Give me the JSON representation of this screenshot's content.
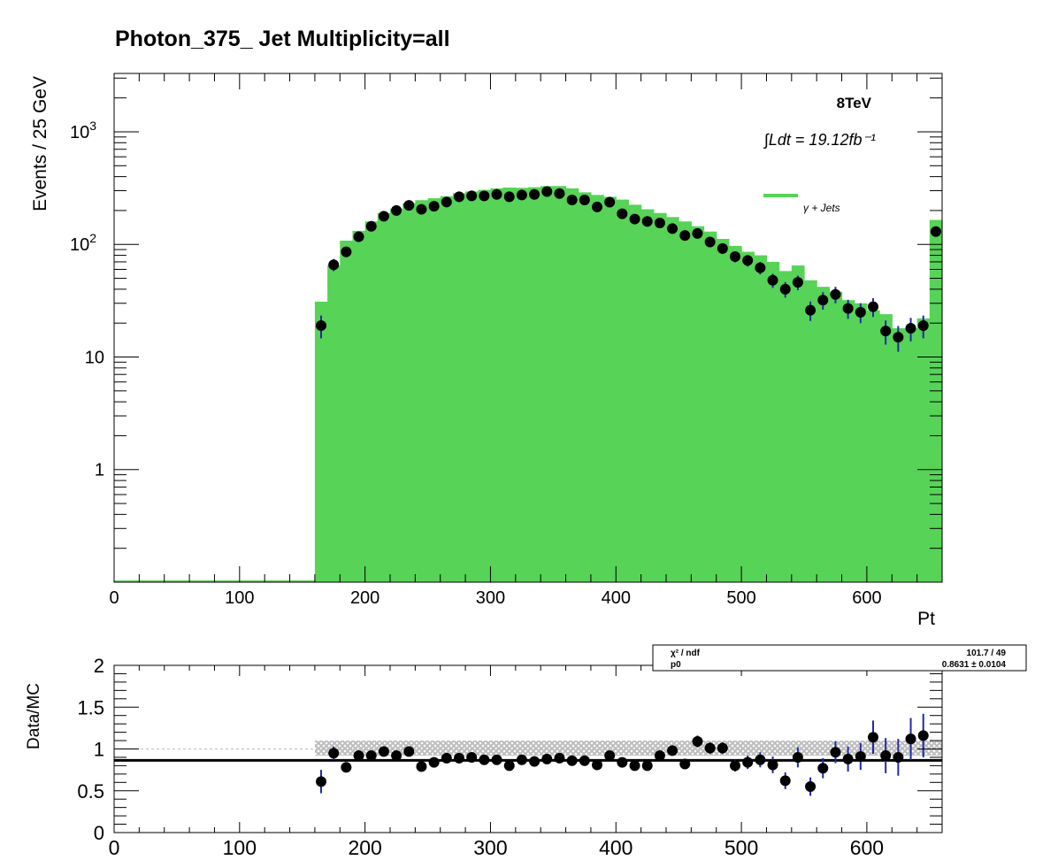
{
  "chart_data": [
    {
      "type": "bar",
      "title": "Photon_375_    Jet Multiplicity=all",
      "xlabel": "Pt",
      "ylabel": "Events / 25 GeV",
      "energy_label": "8TeV",
      "lumi_label": "∫Ldt = 19.12fb⁻¹",
      "legend": [
        {
          "name": "γ + Jets",
          "color": "#57d357",
          "position": "top-right"
        }
      ],
      "log_y": true,
      "xlim": [
        0,
        660
      ],
      "ylim": [
        0.1,
        3300
      ],
      "bin_width": 10,
      "x_ticks": [
        0,
        100,
        200,
        300,
        400,
        500,
        600
      ],
      "y_ticks": [
        {
          "value": 1,
          "label": "1"
        },
        {
          "value": 10,
          "label": "10"
        },
        {
          "value": 100,
          "label": "10²"
        },
        {
          "value": 1000,
          "label": "10³"
        }
      ],
      "mc_color": "#57d357",
      "series": [
        {
          "name": "γ + Jets",
          "x": [
            160,
            170,
            180,
            190,
            200,
            210,
            220,
            230,
            240,
            250,
            260,
            270,
            280,
            290,
            300,
            310,
            320,
            330,
            340,
            350,
            360,
            370,
            380,
            390,
            400,
            410,
            420,
            430,
            440,
            450,
            460,
            470,
            480,
            490,
            500,
            510,
            520,
            530,
            540,
            550,
            560,
            570,
            580,
            590,
            600,
            610,
            620,
            630,
            640,
            650
          ],
          "values": [
            31,
            65,
            108,
            132,
            160,
            190,
            208,
            232,
            247,
            257,
            268,
            285,
            295,
            305,
            315,
            320,
            318,
            322,
            330,
            330,
            315,
            290,
            275,
            265,
            250,
            225,
            205,
            190,
            175,
            160,
            145,
            130,
            112,
            97,
            86,
            80,
            70,
            58,
            65,
            48,
            42,
            38,
            32,
            30,
            26,
            24,
            18,
            18,
            22,
            165
          ]
        },
        {
          "name": "Data",
          "x": [
            165,
            175,
            185,
            195,
            205,
            215,
            225,
            235,
            245,
            255,
            265,
            275,
            285,
            295,
            305,
            315,
            325,
            335,
            345,
            355,
            365,
            375,
            385,
            395,
            405,
            415,
            425,
            435,
            445,
            455,
            465,
            475,
            485,
            495,
            505,
            515,
            525,
            535,
            545,
            555,
            565,
            575,
            585,
            595,
            605,
            615,
            625,
            635,
            645,
            655
          ],
          "values": [
            19,
            66,
            86,
            117,
            145,
            178,
            200,
            222,
            205,
            218,
            238,
            265,
            270,
            270,
            278,
            265,
            275,
            278,
            295,
            283,
            248,
            248,
            215,
            237,
            187,
            168,
            160,
            155,
            138,
            120,
            125,
            105,
            92,
            78,
            72,
            62,
            48,
            40,
            46,
            26,
            32,
            36,
            27,
            25,
            28,
            17,
            15,
            18,
            19,
            130
          ]
        }
      ]
    },
    {
      "type": "scatter",
      "ylabel": "Data/MC",
      "xlim": [
        0,
        660
      ],
      "ylim": [
        0,
        2
      ],
      "x_ticks": [
        0,
        100,
        200,
        300,
        400,
        500,
        600
      ],
      "y_ticks": [
        0,
        0.5,
        1,
        1.5,
        2
      ],
      "fit_line": 0.8631,
      "fit_box": {
        "chi2_label": "χ² / ndf",
        "chi2_value": "101.7 / 49",
        "p0_label": "p0",
        "p0_value": "0.8631 ± 0.0104"
      },
      "series": [
        {
          "name": "ratio",
          "x": [
            165,
            175,
            185,
            195,
            205,
            215,
            225,
            235,
            245,
            255,
            265,
            275,
            285,
            295,
            305,
            315,
            325,
            335,
            345,
            355,
            365,
            375,
            385,
            395,
            405,
            415,
            425,
            435,
            445,
            455,
            465,
            475,
            485,
            495,
            505,
            515,
            525,
            535,
            545,
            555,
            565,
            575,
            585,
            595,
            605,
            615,
            625,
            635,
            645
          ],
          "values": [
            0.61,
            0.95,
            0.78,
            0.92,
            0.92,
            0.97,
            0.92,
            0.97,
            0.79,
            0.84,
            0.89,
            0.89,
            0.9,
            0.87,
            0.87,
            0.8,
            0.87,
            0.85,
            0.88,
            0.89,
            0.86,
            0.86,
            0.81,
            0.92,
            0.84,
            0.8,
            0.8,
            0.92,
            0.98,
            0.82,
            1.09,
            1.01,
            1.01,
            0.8,
            0.84,
            0.87,
            0.81,
            0.62,
            0.9,
            0.55,
            0.77,
            0.96,
            0.88,
            0.91,
            1.14,
            0.92,
            0.9,
            1.12,
            1.16
          ],
          "errors": [
            0.14,
            0.08,
            0.06,
            0.06,
            0.05,
            0.05,
            0.05,
            0.05,
            0.05,
            0.05,
            0.04,
            0.04,
            0.04,
            0.04,
            0.04,
            0.04,
            0.04,
            0.04,
            0.04,
            0.04,
            0.04,
            0.04,
            0.04,
            0.04,
            0.05,
            0.05,
            0.05,
            0.05,
            0.06,
            0.06,
            0.07,
            0.07,
            0.07,
            0.07,
            0.08,
            0.09,
            0.1,
            0.1,
            0.12,
            0.11,
            0.12,
            0.13,
            0.15,
            0.16,
            0.2,
            0.21,
            0.22,
            0.25,
            0.26
          ]
        }
      ]
    }
  ]
}
